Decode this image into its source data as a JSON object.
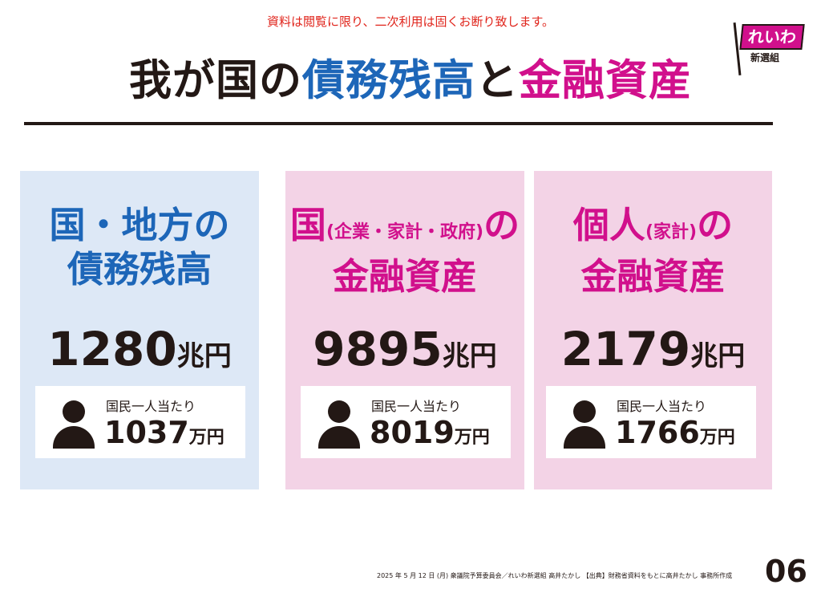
{
  "notice": "資料は閲覧に限り、二次利用は固くお断り致します。",
  "title": {
    "part1": "我が国の",
    "part2": "債務残高",
    "part3": "と",
    "part4": "金融資産"
  },
  "logo": {
    "main": "れいわ",
    "sub": "新選組"
  },
  "panels": [
    {
      "heading_line1": "国・地方の",
      "heading_line2": "債務残高",
      "amount": "1280",
      "unit": "兆円",
      "percap_label": "国民一人当たり",
      "percap_value": "1037",
      "percap_unit": "万円"
    },
    {
      "heading_line1_main": "国",
      "heading_line1_paren": "(企業・家計・政府)",
      "heading_line1_tail": "の",
      "heading_line2": "金融資産",
      "amount": "9895",
      "unit": "兆円",
      "percap_label": "国民一人当たり",
      "percap_value": "8019",
      "percap_unit": "万円"
    },
    {
      "heading_line1_main": "個人",
      "heading_line1_paren": "(家計)",
      "heading_line1_tail": "の",
      "heading_line2": "金融資産",
      "amount": "2179",
      "unit": "兆円",
      "percap_label": "国民一人当たり",
      "percap_value": "1766",
      "percap_unit": "万円"
    }
  ],
  "footer": "2025 年 5 月 12 日 (月) 衆議院予算委員会／れいわ新選組 高井たかし 【出典】財務省資料をもとに高井たかし 事務所作成",
  "page_number": "06",
  "colors": {
    "blue": "#1d66b8",
    "magenta": "#d1108c",
    "notice_red": "#e0241b",
    "blue_panel": "#dde8f6",
    "pink_panel": "#f3d3e6"
  }
}
